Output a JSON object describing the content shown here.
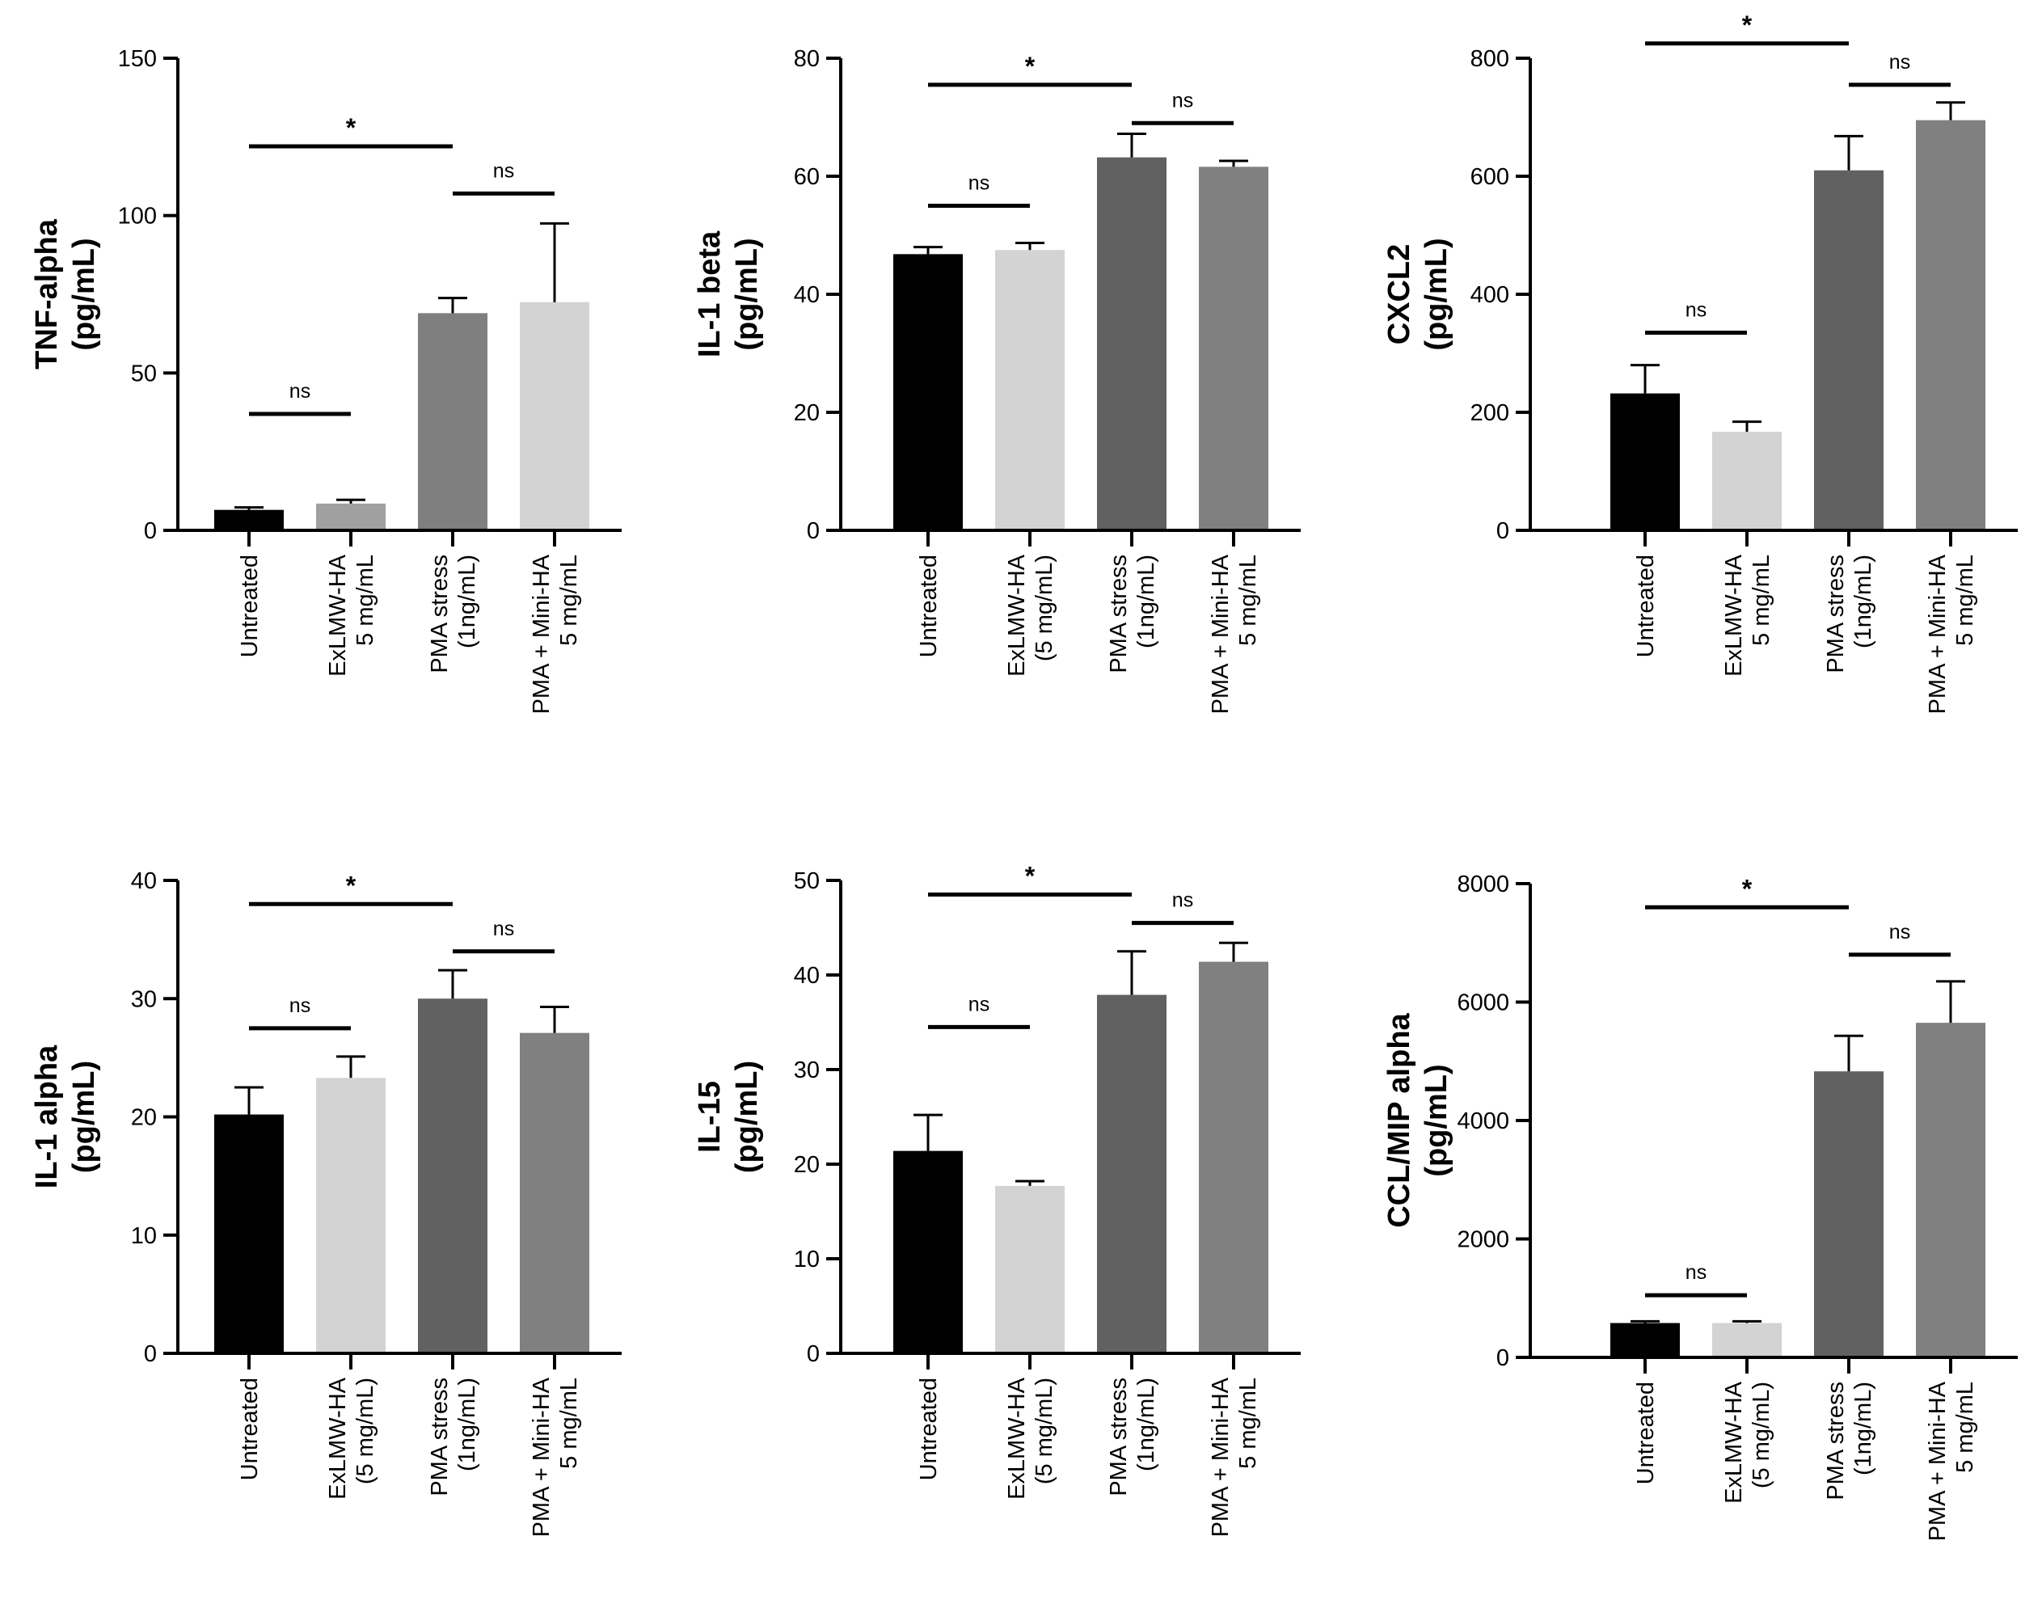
{
  "chart_data": [
    {
      "type": "bar",
      "ylabel": [
        "TNF-alpha",
        "(pg/mL)"
      ],
      "ylim": [
        0,
        150
      ],
      "yticks": [
        0,
        50,
        100,
        150
      ],
      "categories": [
        [
          "Untreated"
        ],
        [
          "ExLMW-HA",
          "5 mg/mL"
        ],
        [
          "PMA stress",
          "(1ng/mL)"
        ],
        [
          "PMA + Mini-HA",
          "5 mg/mL"
        ]
      ],
      "values": [
        6.5,
        8.5,
        69,
        72.5
      ],
      "errors": [
        0.8,
        1.2,
        4.8,
        25
      ],
      "colors": [
        "#000000",
        "#a0a0a0",
        "#7f7f7f",
        "#d3d3d3"
      ],
      "significance": [
        {
          "from": 0,
          "to": 1,
          "y": 37,
          "label": "ns"
        },
        {
          "from": 0,
          "to": 2,
          "y": 122,
          "label": "*"
        },
        {
          "from": 2,
          "to": 3,
          "y": 107,
          "label": "ns"
        }
      ]
    },
    {
      "type": "bar",
      "ylabel": [
        "IL-1 beta",
        "(pg/mL)"
      ],
      "ylim": [
        0,
        80
      ],
      "yticks": [
        0,
        20,
        40,
        60,
        80
      ],
      "categories": [
        [
          "Untreated"
        ],
        [
          "ExLMW-HA",
          "(5 mg/mL)"
        ],
        [
          "PMA stress",
          "(1ng/mL)"
        ],
        [
          "PMA + Mini-HA",
          "5 mg/mL"
        ]
      ],
      "values": [
        46.8,
        47.5,
        63.2,
        61.6
      ],
      "errors": [
        1.2,
        1.2,
        4,
        1
      ],
      "colors": [
        "#000000",
        "#d3d3d3",
        "#616161",
        "#808080"
      ],
      "significance": [
        {
          "from": 0,
          "to": 1,
          "y": 55,
          "label": "ns"
        },
        {
          "from": 0,
          "to": 2,
          "y": 75.5,
          "label": "*"
        },
        {
          "from": 2,
          "to": 3,
          "y": 69,
          "label": "ns"
        }
      ]
    },
    {
      "type": "bar",
      "ylabel": [
        "CXCL2",
        "(pg/mL)"
      ],
      "ylim": [
        0,
        800
      ],
      "yticks": [
        0,
        200,
        400,
        600,
        800
      ],
      "categories": [
        [
          "Untreated"
        ],
        [
          "ExLMW-HA",
          "5 mg/mL"
        ],
        [
          "PMA stress",
          "(1ng/mL)"
        ],
        [
          "PMA + Mini-HA",
          "5 mg/mL"
        ]
      ],
      "values": [
        232,
        167,
        610,
        695
      ],
      "errors": [
        48,
        17,
        58,
        30
      ],
      "colors": [
        "#000000",
        "#d3d3d3",
        "#616161",
        "#808080"
      ],
      "significance": [
        {
          "from": 0,
          "to": 1,
          "y": 335,
          "label": "ns"
        },
        {
          "from": 0,
          "to": 2,
          "y": 825,
          "label": "*"
        },
        {
          "from": 2,
          "to": 3,
          "y": 755,
          "label": "ns"
        }
      ]
    },
    {
      "type": "bar",
      "ylabel": [
        "IL-1 alpha",
        "(pg/mL)"
      ],
      "ylim": [
        0,
        40
      ],
      "yticks": [
        0,
        10,
        20,
        30,
        40
      ],
      "categories": [
        [
          "Untreated"
        ],
        [
          "ExLMW-HA",
          "(5 mg/mL)"
        ],
        [
          "PMA stress",
          "(1ng/mL)"
        ],
        [
          "PMA + Mini-HA",
          "5 mg/mL"
        ]
      ],
      "values": [
        20.2,
        23.3,
        30,
        27.1
      ],
      "errors": [
        2.3,
        1.8,
        2.4,
        2.2
      ],
      "colors": [
        "#000000",
        "#d3d3d3",
        "#616161",
        "#808080"
      ],
      "significance": [
        {
          "from": 0,
          "to": 1,
          "y": 27.5,
          "label": "ns"
        },
        {
          "from": 0,
          "to": 2,
          "y": 38,
          "label": "*"
        },
        {
          "from": 2,
          "to": 3,
          "y": 34,
          "label": "ns"
        }
      ]
    },
    {
      "type": "bar",
      "ylabel": [
        "IL-15",
        "(pg/mL)"
      ],
      "ylim": [
        0,
        50
      ],
      "yticks": [
        0,
        10,
        20,
        30,
        40,
        50
      ],
      "categories": [
        [
          "Untreated"
        ],
        [
          "ExLMW-HA",
          "(5 mg/mL)"
        ],
        [
          "PMA stress",
          "(1ng/mL)"
        ],
        [
          "PMA + Mini-HA",
          "5 mg/mL"
        ]
      ],
      "values": [
        21.4,
        17.7,
        37.9,
        41.4
      ],
      "errors": [
        3.8,
        0.5,
        4.6,
        2
      ],
      "colors": [
        "#000000",
        "#d3d3d3",
        "#616161",
        "#808080"
      ],
      "significance": [
        {
          "from": 0,
          "to": 1,
          "y": 34.5,
          "label": "ns"
        },
        {
          "from": 0,
          "to": 2,
          "y": 48.5,
          "label": "*"
        },
        {
          "from": 2,
          "to": 3,
          "y": 45.5,
          "label": "ns"
        }
      ]
    },
    {
      "type": "bar",
      "ylabel": [
        "CCL/MIP alpha",
        "(pg/mL)"
      ],
      "ylim": [
        0,
        8000
      ],
      "yticks": [
        0,
        2000,
        4000,
        6000,
        8000
      ],
      "categories": [
        [
          "Untreated"
        ],
        [
          "ExLMW-HA",
          "(5 mg/mL)"
        ],
        [
          "PMA stress",
          "(1ng/mL)"
        ],
        [
          "PMA + Mini-HA",
          "5 mg/mL"
        ]
      ],
      "values": [
        580,
        580,
        4830,
        5650
      ],
      "errors": [
        30,
        30,
        600,
        700
      ],
      "colors": [
        "#000000",
        "#d3d3d3",
        "#616161",
        "#808080"
      ],
      "significance": [
        {
          "from": 0,
          "to": 1,
          "y": 1050,
          "label": "ns"
        },
        {
          "from": 0,
          "to": 2,
          "y": 7600,
          "label": "*"
        },
        {
          "from": 2,
          "to": 3,
          "y": 6800,
          "label": "ns"
        }
      ]
    }
  ]
}
